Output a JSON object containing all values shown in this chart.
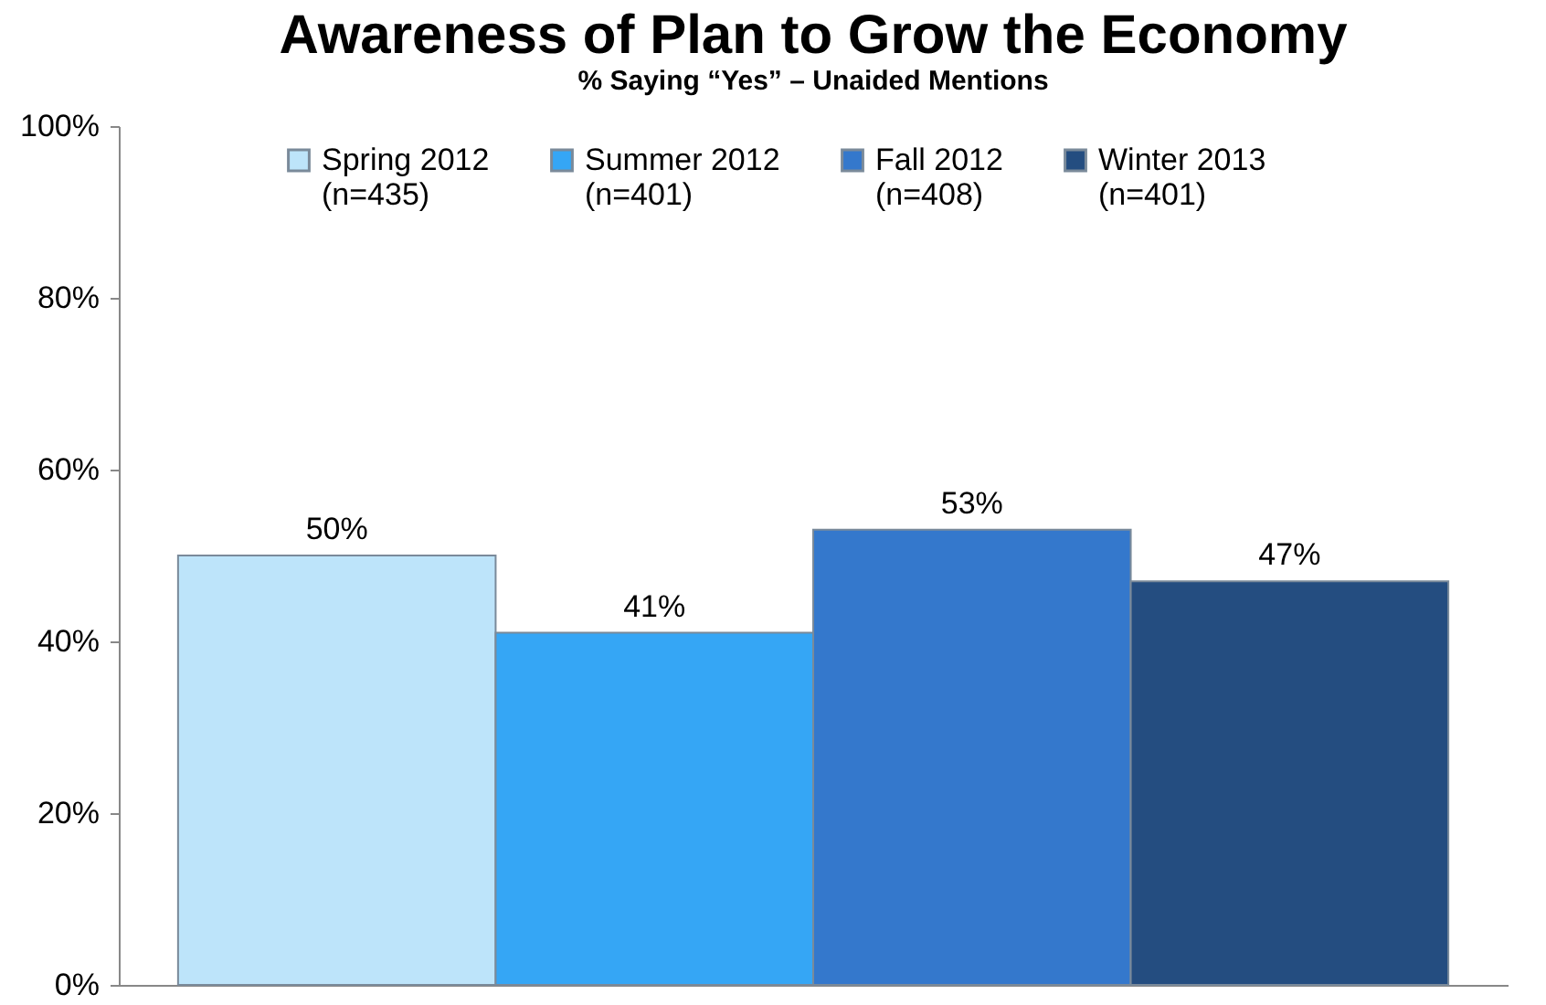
{
  "chart_data": {
    "type": "bar",
    "title": "Awareness of Plan to Grow the Economy",
    "subtitle": "% Saying “Yes” – Unaided Mentions",
    "categories": [
      null
    ],
    "series": [
      {
        "name": "Spring 2012 (n=435)",
        "color": "#bde4fa",
        "values": [
          50
        ],
        "value_labels": [
          "50%"
        ]
      },
      {
        "name": "Summer 2012 (n=401)",
        "color": "#35a6f5",
        "values": [
          41
        ],
        "value_labels": [
          "41%"
        ]
      },
      {
        "name": "Fall 2012 (n=408)",
        "color": "#3478cc",
        "values": [
          53
        ],
        "value_labels": [
          "53%"
        ]
      },
      {
        "name": "Winter 2013 (n=401)",
        "color": "#244d80",
        "values": [
          47
        ],
        "value_labels": [
          "47%"
        ]
      }
    ],
    "ylim": [
      0,
      100
    ],
    "yticks": [
      {
        "value": 0,
        "label": "0%"
      },
      {
        "value": 20,
        "label": "20%"
      },
      {
        "value": 40,
        "label": "40%"
      },
      {
        "value": 60,
        "label": "60%"
      },
      {
        "value": 80,
        "label": "80%"
      },
      {
        "value": 100,
        "label": "100%"
      }
    ],
    "grid": false,
    "legend": "top"
  }
}
